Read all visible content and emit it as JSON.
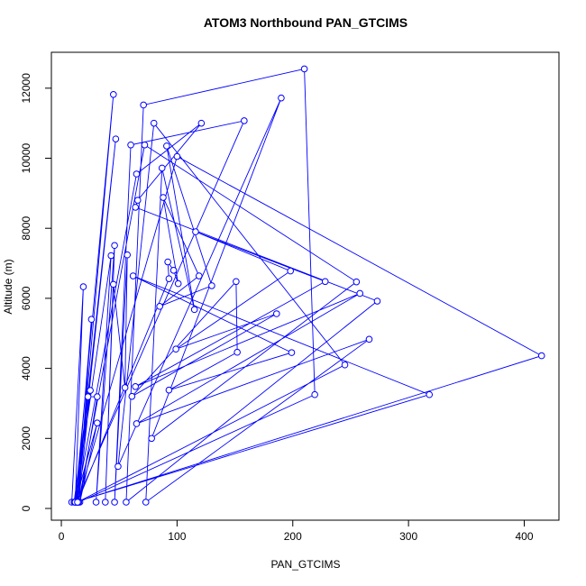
{
  "chart_data": {
    "type": "line",
    "title": "ATOM3 Northbound PAN_GTCIMS",
    "xlabel": "PAN_GTCIMS",
    "ylabel": "Altitude (m)",
    "color": "#0000ff",
    "markers": true,
    "x": [
      9,
      19,
      12,
      45,
      14,
      47,
      13,
      26,
      15,
      25,
      11,
      23,
      31,
      16,
      31,
      12,
      43,
      30,
      46,
      38,
      45,
      55,
      57,
      46,
      60,
      158,
      13,
      65,
      121,
      66,
      64,
      273,
      56,
      71,
      210,
      219,
      15,
      72,
      255,
      78,
      190,
      49,
      80,
      245,
      14,
      100,
      415,
      12,
      318,
      62,
      199,
      93,
      152,
      151,
      61,
      186,
      99,
      198,
      116,
      228,
      64,
      258,
      65,
      266,
      73,
      87,
      115,
      91,
      130,
      85,
      119,
      88,
      101,
      97,
      92,
      93,
      14
    ],
    "values": [
      180,
      6330,
      180,
      11820,
      180,
      10550,
      180,
      5400,
      180,
      3370,
      180,
      3190,
      3190,
      180,
      2440,
      180,
      7220,
      180,
      7510,
      180,
      6400,
      3450,
      7240,
      180,
      10380,
      11070,
      180,
      9550,
      11000,
      8800,
      8600,
      5920,
      180,
      11520,
      12550,
      3250,
      180,
      10380,
      6470,
      2000,
      11720,
      1200,
      11000,
      4100,
      180,
      10050,
      4360,
      180,
      3250,
      6640,
      4450,
      3380,
      4460,
      6480,
      3200,
      5560,
      4550,
      6780,
      7900,
      6480,
      3480,
      6140,
      2420,
      4830,
      180,
      9720,
      5680,
      10350,
      6360,
      5770,
      6640,
      8880,
      6420,
      6800,
      7040,
      6560,
      180
    ],
    "xlim": [
      -8.6,
      430
    ],
    "ylim": [
      -335,
      13025
    ],
    "xticks": [
      0,
      100,
      200,
      300,
      400
    ],
    "yticks": [
      0,
      2000,
      4000,
      6000,
      8000,
      10000,
      12000
    ]
  }
}
